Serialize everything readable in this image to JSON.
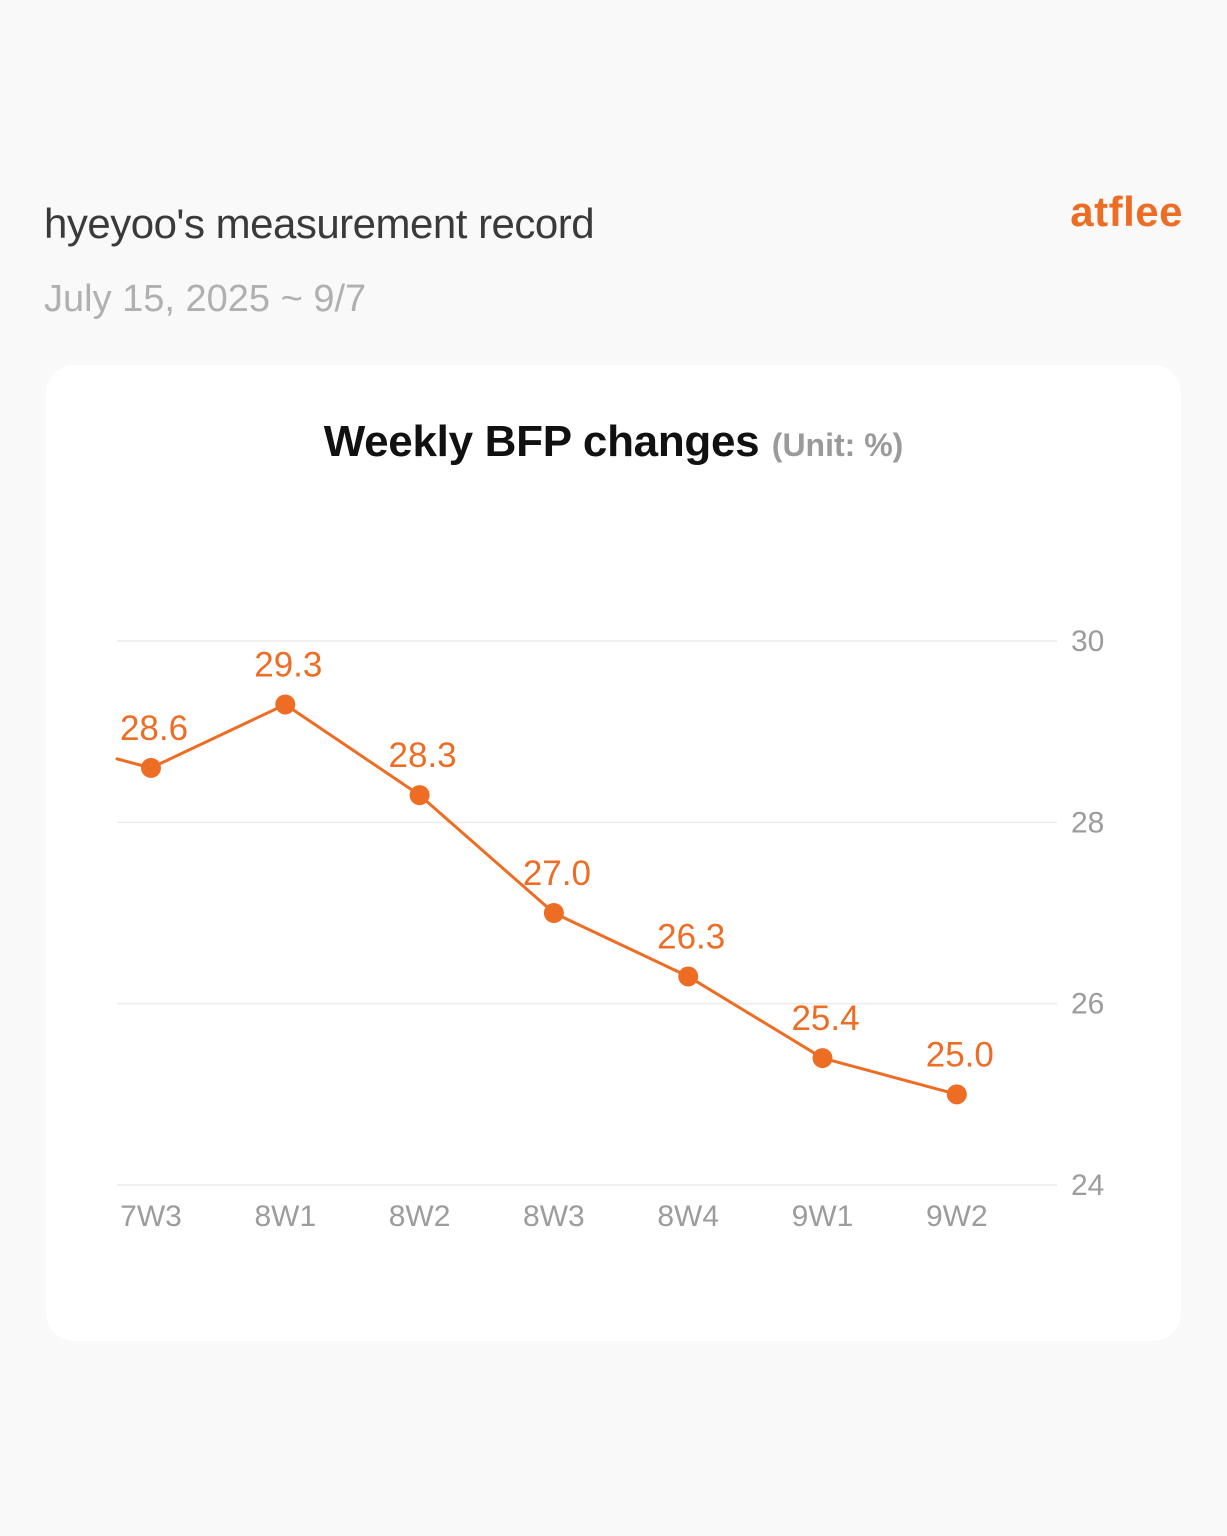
{
  "header": {
    "title": "hyeyoo's measurement record",
    "date_range": "July 15, 2025 ~ 9/7",
    "brand": "atflee"
  },
  "colors": {
    "accent": "#ee6d25",
    "background": "#f9f9f9",
    "card": "#ffffff"
  },
  "chart_data": {
    "type": "line",
    "title": "Weekly BFP changes",
    "unit_label": "(Unit: %)",
    "categories": [
      "7W3",
      "8W1",
      "8W2",
      "8W3",
      "8W4",
      "9W1",
      "9W2"
    ],
    "series": [
      {
        "values": [
          28.6,
          29.3,
          28.3,
          27.0,
          26.3,
          25.4,
          25.0
        ],
        "labels": [
          "28.6",
          "29.3",
          "28.3",
          "27.0",
          "26.3",
          "25.4",
          "25.0"
        ],
        "color": "#ee6d25"
      }
    ],
    "lead_in_value": 28.7,
    "y_ticks": [
      "24",
      "26",
      "28",
      "30"
    ],
    "ylim": [
      24,
      30
    ],
    "y_axis_position": "right",
    "grid": true,
    "legend": "none"
  }
}
